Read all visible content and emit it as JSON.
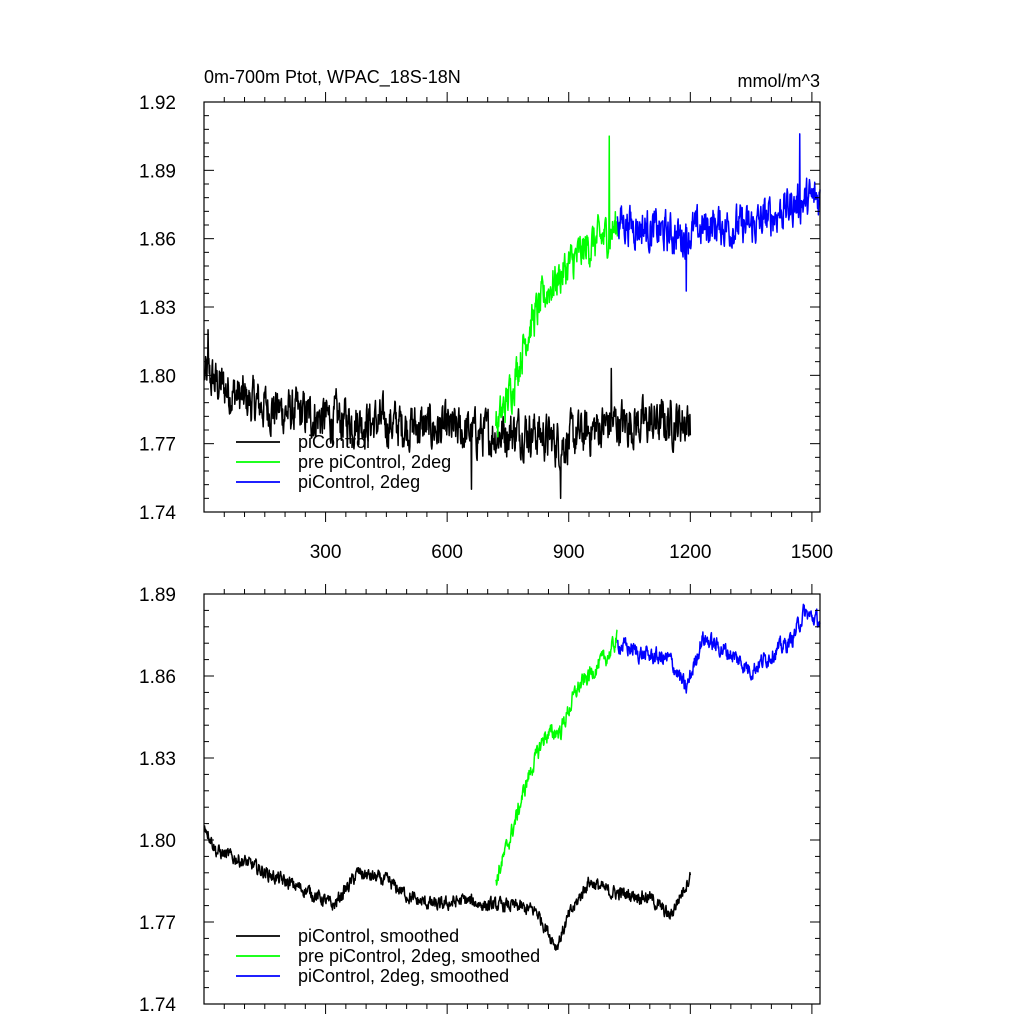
{
  "chart_data": [
    {
      "type": "line",
      "title": "0m-700m Ptot, WPAC_18S-18N",
      "units": "mmol/m^3",
      "xlim": [
        0,
        1520
      ],
      "ylim": [
        1.74,
        1.92
      ],
      "yticks": [
        1.74,
        1.77,
        1.8,
        1.83,
        1.86,
        1.89,
        1.92
      ],
      "ytick_labels": [
        "1.74",
        "1.77",
        "1.80",
        "1.83",
        "1.86",
        "1.89",
        "1.92"
      ],
      "xticks": [
        300,
        600,
        900,
        1200,
        1500
      ],
      "xtick_labels": [
        "300",
        "600",
        "900",
        "1200",
        "1500"
      ],
      "legend_position": "bottom-left",
      "series": [
        {
          "name": "piControl",
          "color": "#000000",
          "x_range": [
            1,
            1200
          ],
          "trend": [
            [
              1,
              1.8
            ],
            [
              100,
              1.789
            ],
            [
              200,
              1.784
            ],
            [
              300,
              1.781
            ],
            [
              450,
              1.779
            ],
            [
              600,
              1.776
            ],
            [
              700,
              1.774
            ],
            [
              800,
              1.776
            ],
            [
              880,
              1.77
            ],
            [
              1000,
              1.779
            ],
            [
              1100,
              1.779
            ],
            [
              1200,
              1.78
            ]
          ],
          "noise": 0.008,
          "extremes": [
            [
              10,
              1.82
            ],
            [
              880,
              1.746
            ],
            [
              660,
              1.75
            ],
            [
              1005,
              1.803
            ]
          ]
        },
        {
          "name": "pre piControl, 2deg",
          "color": "#00ff00",
          "x_range": [
            720,
            1020
          ],
          "trend": [
            [
              720,
              1.776
            ],
            [
              760,
              1.795
            ],
            [
              800,
              1.82
            ],
            [
              850,
              1.838
            ],
            [
              900,
              1.848
            ],
            [
              950,
              1.857
            ],
            [
              1000,
              1.862
            ],
            [
              1020,
              1.866
            ]
          ],
          "noise": 0.007,
          "extremes": [
            [
              1000,
              1.905
            ]
          ]
        },
        {
          "name": "piControl, 2deg",
          "color": "#0000ff",
          "x_range": [
            1020,
            1520
          ],
          "trend": [
            [
              1020,
              1.868
            ],
            [
              1100,
              1.864
            ],
            [
              1180,
              1.861
            ],
            [
              1250,
              1.866
            ],
            [
              1350,
              1.865
            ],
            [
              1420,
              1.872
            ],
            [
              1470,
              1.876
            ],
            [
              1520,
              1.878
            ]
          ],
          "noise": 0.007,
          "extremes": [
            [
              1470,
              1.906
            ],
            [
              1190,
              1.837
            ]
          ]
        }
      ]
    },
    {
      "type": "line",
      "xlim": [
        0,
        1520
      ],
      "ylim": [
        1.74,
        1.89
      ],
      "yticks": [
        1.74,
        1.77,
        1.8,
        1.83,
        1.86,
        1.89
      ],
      "ytick_labels": [
        "1.74",
        "1.77",
        "1.80",
        "1.83",
        "1.86",
        "1.89"
      ],
      "xticks": [
        300,
        600,
        900,
        1200,
        1500
      ],
      "legend_position": "bottom-left",
      "series": [
        {
          "name": "piControl, smoothed",
          "color": "#000000",
          "x_range": [
            1,
            1200
          ],
          "trend": [
            [
              1,
              1.806
            ],
            [
              30,
              1.796
            ],
            [
              100,
              1.792
            ],
            [
              180,
              1.786
            ],
            [
              260,
              1.781
            ],
            [
              320,
              1.776
            ],
            [
              380,
              1.788
            ],
            [
              450,
              1.785
            ],
            [
              520,
              1.778
            ],
            [
              580,
              1.776
            ],
            [
              640,
              1.778
            ],
            [
              700,
              1.776
            ],
            [
              760,
              1.776
            ],
            [
              820,
              1.774
            ],
            [
              870,
              1.761
            ],
            [
              900,
              1.772
            ],
            [
              950,
              1.785
            ],
            [
              1000,
              1.781
            ],
            [
              1100,
              1.779
            ],
            [
              1150,
              1.772
            ],
            [
              1200,
              1.787
            ]
          ],
          "noise": 0.002
        },
        {
          "name": "pre piControl, 2deg, smoothed",
          "color": "#00ff00",
          "x_range": [
            720,
            1020
          ],
          "trend": [
            [
              720,
              1.785
            ],
            [
              760,
              1.803
            ],
            [
              800,
              1.823
            ],
            [
              840,
              1.838
            ],
            [
              880,
              1.84
            ],
            [
              920,
              1.855
            ],
            [
              960,
              1.862
            ],
            [
              1000,
              1.868
            ],
            [
              1020,
              1.874
            ]
          ],
          "noise": 0.0025
        },
        {
          "name": "piControl, 2deg, smoothed",
          "color": "#0000ff",
          "x_range": [
            1020,
            1520
          ],
          "trend": [
            [
              1020,
              1.872
            ],
            [
              1080,
              1.868
            ],
            [
              1150,
              1.866
            ],
            [
              1190,
              1.855
            ],
            [
              1230,
              1.874
            ],
            [
              1300,
              1.868
            ],
            [
              1350,
              1.862
            ],
            [
              1400,
              1.868
            ],
            [
              1450,
              1.873
            ],
            [
              1480,
              1.883
            ],
            [
              1520,
              1.88
            ]
          ],
          "noise": 0.0025
        }
      ]
    }
  ]
}
